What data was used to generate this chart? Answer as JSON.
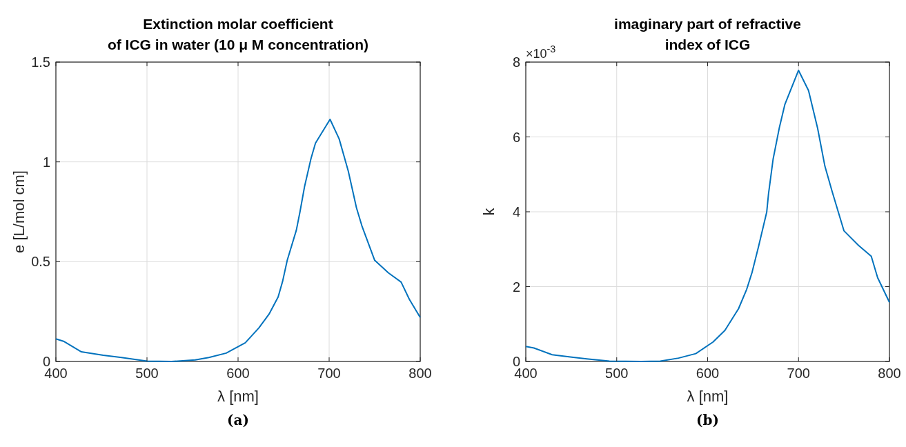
{
  "chart_data": [
    {
      "type": "line",
      "title": "Extinction molar coefficient\nof ICG in water (10 μ M concentration)",
      "xlabel": "λ [nm]",
      "ylabel": "e [L/mol cm]",
      "annotations": [
        "(a)"
      ],
      "x": [
        400,
        409,
        428,
        452,
        472,
        500,
        527,
        553,
        568,
        587,
        608,
        623,
        634,
        644,
        649,
        654,
        664,
        668,
        673,
        680,
        685,
        701,
        711,
        721,
        730,
        736,
        750,
        765,
        779,
        788,
        800
      ],
      "series": [
        {
          "color": "#0072bd",
          "values": [
            0.113,
            0.1,
            0.048,
            0.031,
            0.02,
            0.002,
            0,
            0.008,
            0.02,
            0.042,
            0.094,
            0.169,
            0.237,
            0.323,
            0.403,
            0.507,
            0.658,
            0.75,
            0.876,
            1.015,
            1.094,
            1.213,
            1.115,
            0.954,
            0.77,
            0.679,
            0.507,
            0.444,
            0.398,
            0.312,
            0.22
          ]
        }
      ],
      "xlim": [
        400,
        800
      ],
      "ylim": [
        0,
        1.5
      ],
      "xticks": [
        400,
        500,
        600,
        700,
        800
      ],
      "yticks": [
        0,
        0.5,
        1,
        1.5
      ],
      "grid": true
    },
    {
      "type": "line",
      "title": "imaginary part of refractive\nindex of ICG",
      "xlabel": "λ [nm]",
      "ylabel": "k",
      "annotations": [
        "×10$^{-3}$",
        "(b)"
      ],
      "x": [
        400,
        409,
        429,
        449,
        467,
        492,
        527,
        548,
        568,
        587,
        606,
        619,
        634,
        643,
        649,
        656,
        665,
        667,
        672,
        679,
        685,
        700,
        711,
        721,
        729,
        737,
        750,
        766,
        780,
        787,
        800
      ],
      "series": [
        {
          "color": "#0072bd",
          "values": [
            0.4,
            0.36,
            0.18,
            0.12,
            0.07,
            0.01,
            0,
            0.01,
            0.09,
            0.21,
            0.52,
            0.83,
            1.41,
            1.93,
            2.39,
            3.07,
            3.99,
            4.48,
            5.4,
            6.26,
            6.87,
            7.78,
            7.24,
            6.23,
            5.22,
            4.54,
            3.49,
            3.1,
            2.81,
            2.24,
            1.58
          ]
        }
      ],
      "xlim": [
        400,
        800
      ],
      "ylim": [
        0,
        8
      ],
      "xticks": [
        400,
        500,
        600,
        700,
        800
      ],
      "yticks": [
        0,
        2,
        4,
        6,
        8
      ],
      "grid": true
    }
  ]
}
